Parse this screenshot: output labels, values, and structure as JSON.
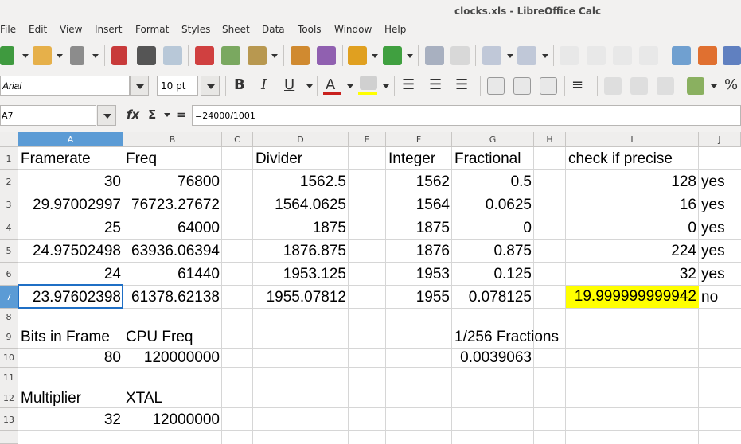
{
  "window": {
    "title": "clocks.xls - LibreOffice Calc"
  },
  "menu": [
    "File",
    "Edit",
    "View",
    "Insert",
    "Format",
    "Styles",
    "Sheet",
    "Data",
    "Tools",
    "Window",
    "Help"
  ],
  "format": {
    "font_name": "Arial",
    "font_size": "10 pt"
  },
  "formula": {
    "cell_ref": "A7",
    "content": "=24000/1001"
  },
  "columns": [
    "A",
    "B",
    "C",
    "D",
    "E",
    "F",
    "G",
    "H",
    "I",
    "J"
  ],
  "rows": [
    "1",
    "2",
    "3",
    "4",
    "5",
    "6",
    "7",
    "8",
    "9",
    "10",
    "11",
    "12",
    "13"
  ],
  "cells": {
    "A1": "Framerate",
    "B1": "Freq",
    "D1": "Divider",
    "F1": "Integer",
    "G1": "Fractional",
    "I1": "check if precise",
    "A2": "30",
    "B2": "76800",
    "D2": "1562.5",
    "F2": "1562",
    "G2": "0.5",
    "I2": "128",
    "J2": "yes",
    "A3": "29.97002997",
    "B3": "76723.27672",
    "D3": "1564.0625",
    "F3": "1564",
    "G3": "0.0625",
    "I3": "16",
    "J3": "yes",
    "A4": "25",
    "B4": "64000",
    "D4": "1875",
    "F4": "1875",
    "G4": "0",
    "I4": "0",
    "J4": "yes",
    "A5": "24.97502498",
    "B5": "63936.06394",
    "D5": "1876.875",
    "F5": "1876",
    "G5": "0.875",
    "I5": "224",
    "J5": "yes",
    "A6": "24",
    "B6": "61440",
    "D6": "1953.125",
    "F6": "1953",
    "G6": "0.125",
    "I6": "32",
    "J6": "yes",
    "A7": "23.97602398",
    "B7": "61378.62138",
    "D7": "1955.07812",
    "F7": "1955",
    "G7": "0.078125",
    "I7": "19.999999999942",
    "J7": "no",
    "A9": "Bits in Frame",
    "B9": "CPU Freq",
    "G9": "1/256 Fractions",
    "A10": "80",
    "B10": "120000000",
    "G10": "0.0039063",
    "A12": "Multiplier",
    "B12": "XTAL",
    "A13": "32",
    "B13": "12000000"
  },
  "highlight_color": "#ffff00",
  "selection_color": "#5b9bd5"
}
